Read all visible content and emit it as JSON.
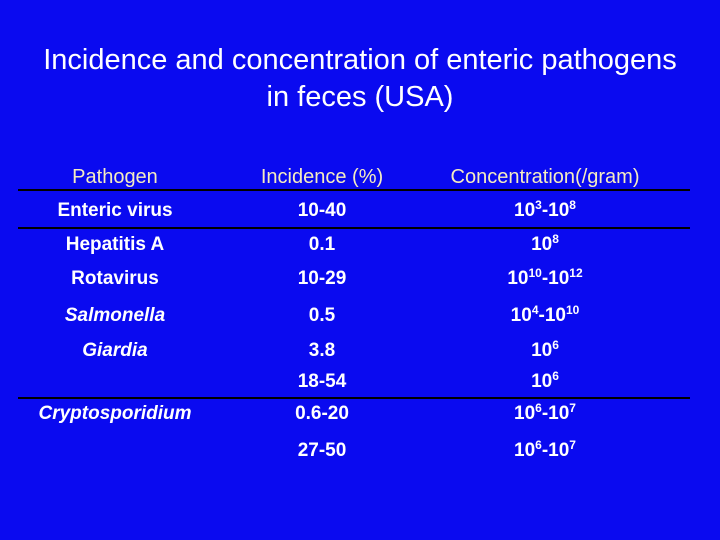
{
  "title": "Incidence and concentration of enteric pathogens in feces (USA)",
  "table": {
    "header": [
      "Pathogen",
      "Incidence (%)",
      "Concentration(/gram)"
    ],
    "rows": [
      {
        "pathogen": "Enteric virus",
        "italic": false,
        "incidence": "10-40",
        "concentration": [
          {
            "text": "10"
          },
          {
            "sup": "3"
          },
          {
            "text": "-10"
          },
          {
            "sup": "8"
          }
        ]
      },
      {
        "pathogen": "Hepatitis A",
        "italic": false,
        "incidence": "0.1",
        "concentration": [
          {
            "text": "10"
          },
          {
            "sup": "8"
          }
        ]
      },
      {
        "pathogen": "Rotavirus",
        "italic": false,
        "incidence": "10-29",
        "concentration": [
          {
            "text": "10"
          },
          {
            "sup": "10"
          },
          {
            "text": "-10"
          },
          {
            "sup": "12"
          }
        ]
      },
      {
        "pathogen": "Salmonella",
        "italic": true,
        "incidence": "0.5",
        "concentration": [
          {
            "text": "10"
          },
          {
            "sup": "4"
          },
          {
            "text": "-10"
          },
          {
            "sup": "10"
          }
        ]
      },
      {
        "pathogen": "Giardia",
        "italic": true,
        "incidence": "3.8",
        "concentration": [
          {
            "text": "10"
          },
          {
            "sup": "6"
          }
        ]
      },
      {
        "pathogen": null,
        "italic": false,
        "incidence": "18-54",
        "concentration": [
          {
            "text": "10"
          },
          {
            "sup": "6"
          }
        ]
      },
      {
        "pathogen": "Cryptosporidium",
        "italic": true,
        "incidence": "0.6-20",
        "concentration": [
          {
            "text": "10"
          },
          {
            "sup": "6"
          },
          {
            "text": "-10"
          },
          {
            "sup": "7"
          }
        ]
      },
      {
        "pathogen": null,
        "italic": false,
        "incidence": "27-50",
        "concentration": [
          {
            "text": "10"
          },
          {
            "sup": "6"
          },
          {
            "text": "-10"
          },
          {
            "sup": "7"
          }
        ]
      }
    ]
  }
}
